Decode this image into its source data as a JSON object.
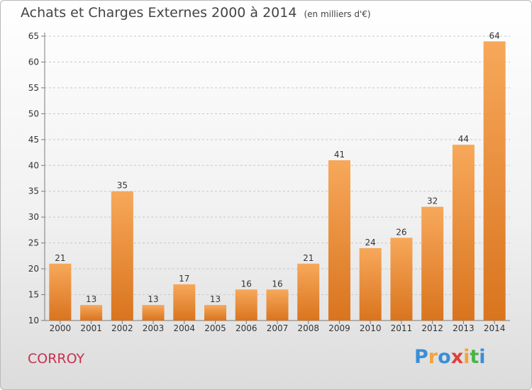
{
  "title": "Achats et Charges Externes 2000 à 2014",
  "unit_note": "(en milliers d'€)",
  "commune": "CORROY",
  "logo": {
    "text": "Proxiti",
    "letters": [
      "P",
      "r",
      "o",
      "x",
      "i",
      "t",
      "i"
    ],
    "colors": [
      "#3a8fd6",
      "#f2a33a",
      "#3a8fd6",
      "#e0403a",
      "#f2a33a",
      "#48b44a",
      "#3a8fd6"
    ]
  },
  "colors": {
    "bar_light": "#f7a85a",
    "bar_dark": "#d9741e",
    "axis": "#7a7a7a",
    "grid": "#c8c8c8",
    "title": "#444444",
    "commune": "#c9304d"
  },
  "chart_data": {
    "type": "bar",
    "categories": [
      "2000",
      "2001",
      "2002",
      "2003",
      "2004",
      "2005",
      "2006",
      "2007",
      "2008",
      "2009",
      "2010",
      "2011",
      "2012",
      "2013",
      "2014"
    ],
    "values": [
      21,
      13,
      35,
      13,
      17,
      13,
      16,
      16,
      21,
      41,
      24,
      26,
      32,
      44,
      64
    ],
    "value_labels": [
      "21",
      "13",
      "35",
      "13",
      "17",
      "13",
      "16",
      "16",
      "21",
      "41",
      "24",
      "26",
      "32",
      "44",
      "64"
    ],
    "y_ticks": [
      "10",
      "15",
      "20",
      "25",
      "30",
      "35",
      "40",
      "45",
      "50",
      "55",
      "60",
      "65"
    ],
    "ylim": [
      10,
      65
    ],
    "grid": true,
    "xlabel": "",
    "ylabel": ""
  }
}
